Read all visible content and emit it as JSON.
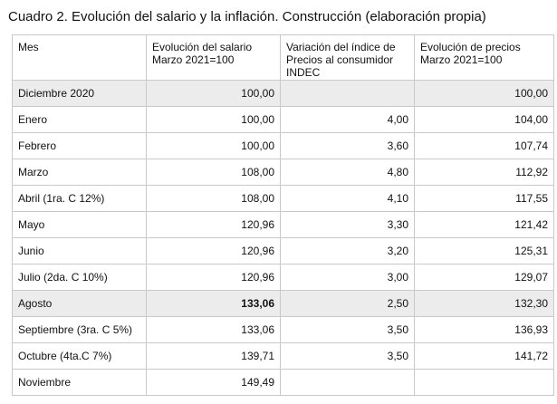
{
  "caption": "Cuadro 2. Evolución del salario y la inflación. Construcción (elaboración propia)",
  "headers": {
    "mes": "Mes",
    "salario": "Evolución del salario Marzo 2021=100",
    "ipc": "Variación del índice de Precios al consumidor INDEC",
    "precios": "Evolución de precios Marzo 2021=100"
  },
  "rows": [
    {
      "mes": "Diciembre 2020",
      "salario": "100,00",
      "ipc": "",
      "precios": "100,00"
    },
    {
      "mes": "Enero",
      "salario": "100,00",
      "ipc": "4,00",
      "precios": "104,00"
    },
    {
      "mes": "Febrero",
      "salario": "100,00",
      "ipc": "3,60",
      "precios": "107,74"
    },
    {
      "mes": "Marzo",
      "salario": "108,00",
      "ipc": "4,80",
      "precios": "112,92"
    },
    {
      "mes": "Abril (1ra. C 12%)",
      "salario": "108,00",
      "ipc": "4,10",
      "precios": "117,55"
    },
    {
      "mes": "Mayo",
      "salario": "120,96",
      "ipc": "3,30",
      "precios": "121,42"
    },
    {
      "mes": "Junio",
      "salario": "120,96",
      "ipc": "3,20",
      "precios": "125,31"
    },
    {
      "mes": "Julio (2da. C 10%)",
      "salario": "120,96",
      "ipc": "3,00",
      "precios": "129,07"
    },
    {
      "mes": "Agosto",
      "salario": "133,06",
      "ipc": "2,50",
      "precios": "132,30"
    },
    {
      "mes": "Septiembre (3ra. C 5%)",
      "salario": "133,06",
      "ipc": "3,50",
      "precios": "136,93"
    },
    {
      "mes": "Octubre (4ta.C 7%)",
      "salario": "139,71",
      "ipc": "3,50",
      "precios": "141,72"
    },
    {
      "mes": "Noviembre",
      "salario": "149,49",
      "ipc": "",
      "precios": ""
    }
  ]
}
